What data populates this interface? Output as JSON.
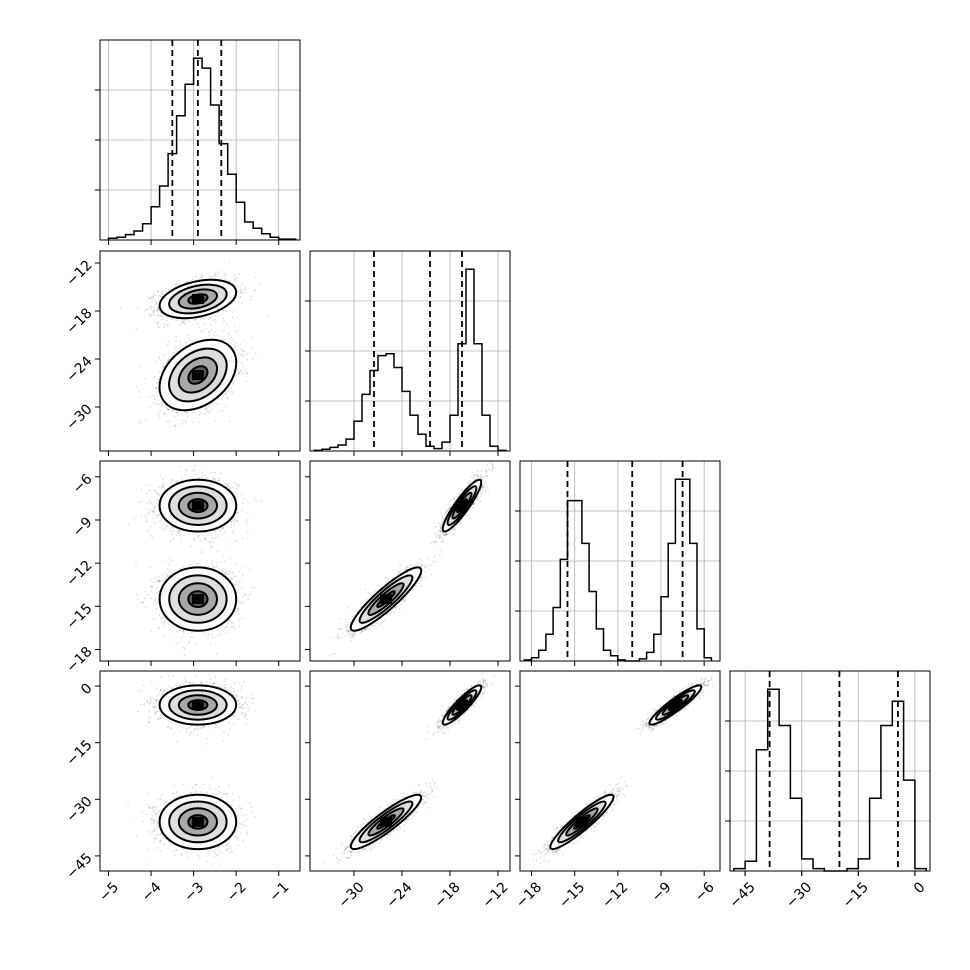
{
  "chart_data": {
    "type": "corner",
    "parameters": [
      {
        "range": [
          -5.2,
          -0.5
        ],
        "ticks": [
          -5,
          -4,
          -3,
          -2,
          -1
        ],
        "tick_labels": [
          "−5",
          "−4",
          "−3",
          "−2",
          "−1"
        ],
        "quantiles": [
          -3.5,
          -2.9,
          -2.35
        ]
      },
      {
        "range": [
          -35.5,
          -10.5
        ],
        "ticks": [
          -30,
          -24,
          -18,
          -12
        ],
        "tick_labels": [
          "−30",
          "−24",
          "−18",
          "−12"
        ],
        "quantiles": [
          -27.5,
          -20.5,
          -16.5
        ]
      },
      {
        "range": [
          -18.8,
          -4.9
        ],
        "ticks": [
          -18,
          -15,
          -12,
          -9,
          -6
        ],
        "tick_labels": [
          "−18",
          "−15",
          "−12",
          "−9",
          "−6"
        ],
        "quantiles": [
          -15.5,
          -11.0,
          -7.5
        ]
      },
      {
        "range": [
          -49,
          4
        ],
        "ticks": [
          -45,
          -30,
          -15,
          0
        ],
        "tick_labels": [
          "−45",
          "−30",
          "−15",
          "0"
        ],
        "quantiles": [
          -38.5,
          -20.0,
          -4.5
        ]
      }
    ],
    "histograms": [
      {
        "bins": [
          -5.0,
          -4.8,
          -4.6,
          -4.4,
          -4.2,
          -4.0,
          -3.8,
          -3.6,
          -3.4,
          -3.2,
          -3.0,
          -2.8,
          -2.6,
          -2.4,
          -2.2,
          -2.0,
          -1.8,
          -1.6,
          -1.4,
          -1.2,
          -1.0,
          -0.8,
          -0.6
        ],
        "counts": [
          2,
          3,
          6,
          10,
          18,
          37,
          60,
          96,
          138,
          173,
          202,
          191,
          150,
          107,
          73,
          42,
          20,
          13,
          7,
          3,
          1,
          1
        ]
      },
      {
        "bins": [
          -35,
          -34,
          -33,
          -32,
          -31,
          -30,
          -29,
          -28,
          -27,
          -26,
          -25,
          -24,
          -23,
          -22,
          -21,
          -20,
          -19,
          -18,
          -17,
          -16,
          -15,
          -14,
          -13,
          -12,
          -11
        ],
        "counts": [
          1,
          3,
          6,
          10,
          20,
          50,
          95,
          135,
          160,
          163,
          140,
          100,
          60,
          28,
          8,
          4,
          15,
          60,
          180,
          305,
          180,
          60,
          8,
          1
        ]
      },
      {
        "bins": [
          -18.5,
          -18.0,
          -17.5,
          -17.0,
          -16.5,
          -16.0,
          -15.5,
          -15.0,
          -14.5,
          -14.0,
          -13.5,
          -13.0,
          -12.5,
          -12.0,
          -11.5,
          -11.0,
          -10.5,
          -10.0,
          -9.5,
          -9.0,
          -8.5,
          -8.0,
          -7.5,
          -7.0,
          -6.5,
          -6.0,
          -5.5
        ],
        "counts": [
          1,
          3,
          10,
          25,
          50,
          95,
          150,
          150,
          110,
          65,
          30,
          10,
          5,
          1,
          0,
          0,
          2,
          8,
          25,
          60,
          110,
          170,
          170,
          110,
          30,
          3
        ]
      },
      {
        "bins": [
          -48,
          -45,
          -42,
          -39,
          -36,
          -33,
          -30,
          -27,
          -24,
          -21,
          -18,
          -15,
          -12,
          -9,
          -6,
          -3,
          0,
          3
        ],
        "counts": [
          2,
          8,
          100,
          150,
          120,
          60,
          10,
          2,
          0,
          0,
          2,
          10,
          60,
          120,
          140,
          75,
          2
        ]
      }
    ],
    "modes": [
      {
        "mean": [
          -2.9,
          -16.5,
          -8.0,
          -5.0
        ],
        "sd": [
          0.45,
          1.2,
          0.9,
          2.6
        ]
      },
      {
        "mean": [
          -2.9,
          -26.0,
          -14.5,
          -36.0
        ],
        "sd": [
          0.45,
          2.2,
          1.1,
          3.6
        ]
      }
    ],
    "correlations": {
      "0-1": 0.35,
      "1-2": 0.9,
      "1-3": 0.9,
      "2-3": 0.92
    },
    "plot_grid": true,
    "line_style": "dashed quantile lines, solid step histograms, filled density contours"
  }
}
